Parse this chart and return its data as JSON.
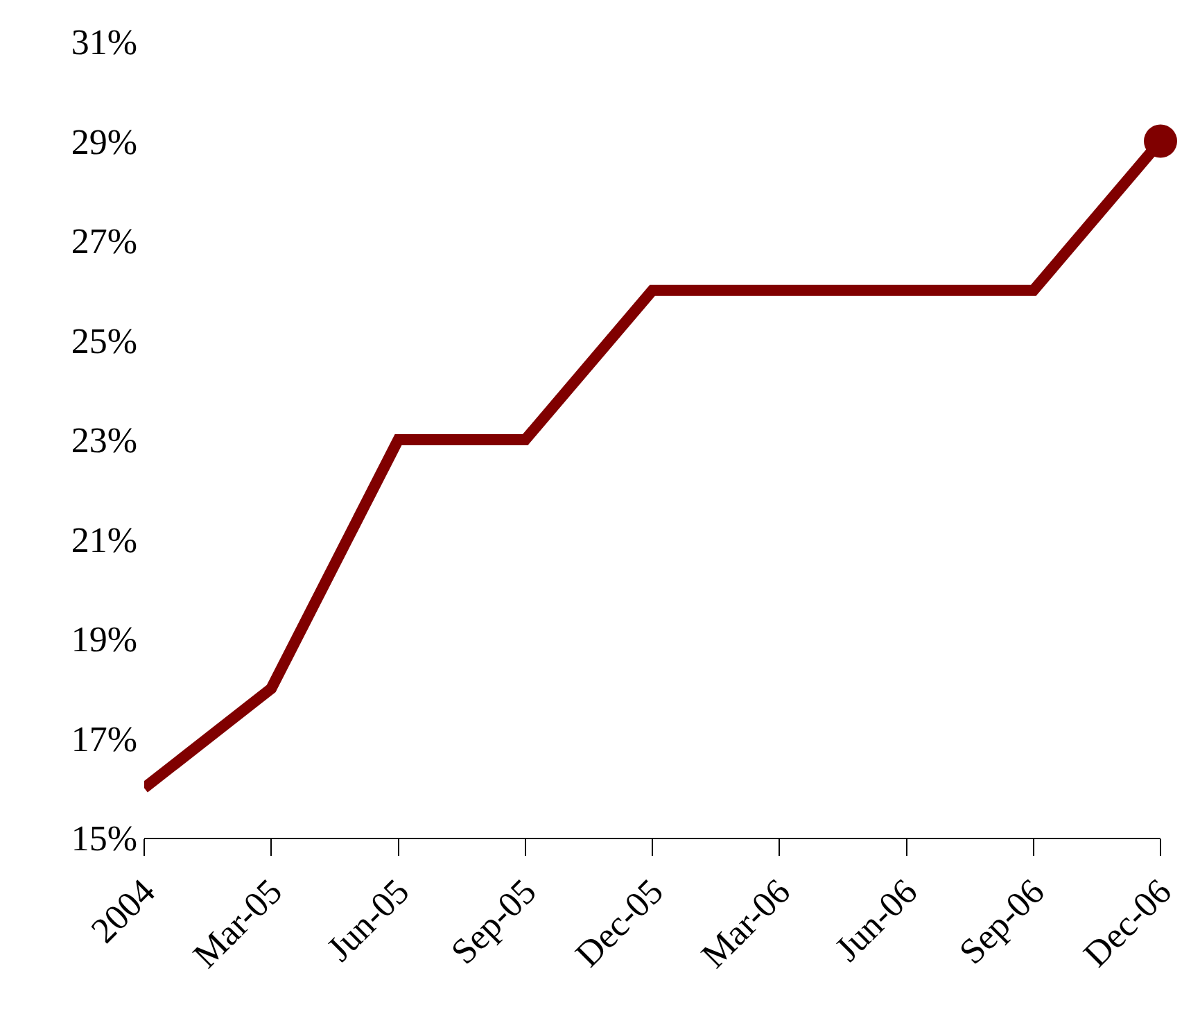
{
  "chart_data": {
    "type": "line",
    "categories": [
      "2004",
      "Mar-05",
      "Jun-05",
      "Sep-05",
      "Dec-05",
      "Mar-06",
      "Jun-06",
      "Sep-06",
      "Dec-06"
    ],
    "series": [
      {
        "color": "#800000",
        "values": [
          16,
          18,
          23,
          23,
          26,
          26,
          26,
          26,
          29
        ]
      },
      {
        "type": "scatter",
        "marker": "circle",
        "color": "#800000",
        "values": [
          null,
          null,
          null,
          null,
          null,
          null,
          null,
          null,
          29
        ]
      }
    ],
    "ylim": [
      15,
      31
    ],
    "yticks": [
      {
        "value": 15,
        "label": "15%"
      },
      {
        "value": 17,
        "label": "17%"
      },
      {
        "value": 19,
        "label": "19%"
      },
      {
        "value": 21,
        "label": "21%"
      },
      {
        "value": 23,
        "label": "23%"
      },
      {
        "value": 25,
        "label": "25%"
      },
      {
        "value": 27,
        "label": "27%"
      },
      {
        "value": 29,
        "label": "29%"
      },
      {
        "value": 31,
        "label": "31%"
      }
    ],
    "grid": false,
    "line_style": "solid"
  }
}
